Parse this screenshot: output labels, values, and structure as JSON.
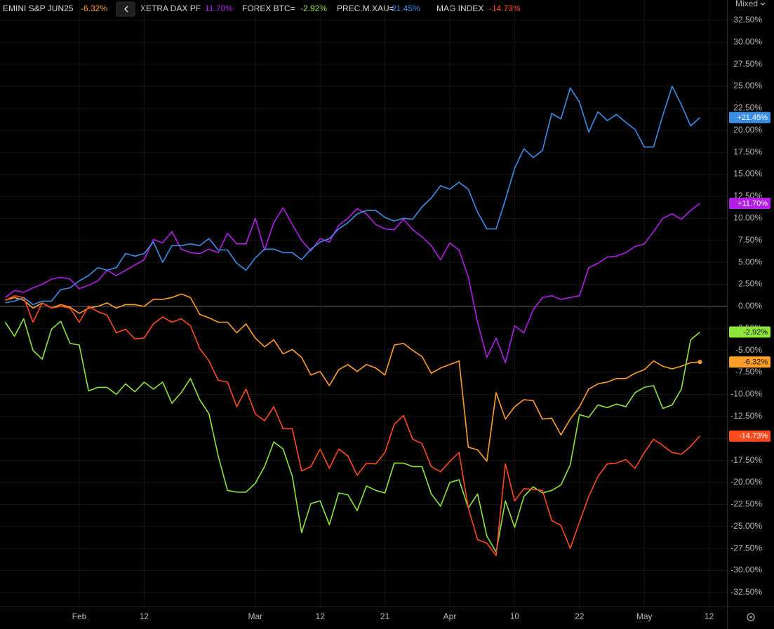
{
  "chart_data": {
    "type": "line",
    "scale_mode": "Mixed",
    "categories": [
      null,
      null,
      null,
      null,
      null,
      null,
      null,
      null,
      "Feb",
      null,
      null,
      null,
      null,
      null,
      null,
      "12",
      null,
      null,
      null,
      null,
      null,
      null,
      null,
      null,
      null,
      null,
      null,
      "Mar",
      null,
      null,
      null,
      null,
      null,
      null,
      "12",
      null,
      null,
      null,
      null,
      null,
      null,
      "21",
      null,
      null,
      null,
      null,
      null,
      null,
      "Apr",
      null,
      null,
      null,
      null,
      null,
      null,
      "10",
      null,
      null,
      null,
      null,
      null,
      null,
      "22",
      null,
      null,
      null,
      null,
      null,
      null,
      "May",
      null,
      null,
      null,
      null,
      null,
      null,
      "12"
    ],
    "ylim": [
      -34.1,
      34.8
    ],
    "yticks": [
      {
        "value": 32.5,
        "label": "32.50%"
      },
      {
        "value": 30,
        "label": "30.00%"
      },
      {
        "value": 27.5,
        "label": "27.50%"
      },
      {
        "value": 25,
        "label": "25.00%"
      },
      {
        "value": 22.5,
        "label": "22.50%"
      },
      {
        "value": 20,
        "label": "20.00%"
      },
      {
        "value": 17.5,
        "label": "17.50%"
      },
      {
        "value": 15,
        "label": "15.00%"
      },
      {
        "value": 12.5,
        "label": "12.50%"
      },
      {
        "value": 10,
        "label": "10.00%"
      },
      {
        "value": 7.5,
        "label": "7.50%"
      },
      {
        "value": 5,
        "label": "5.00%"
      },
      {
        "value": 2.5,
        "label": "2.50%"
      },
      {
        "value": 0,
        "label": "0.00%"
      },
      {
        "value": -2.5,
        "label": "-2.50%"
      },
      {
        "value": -5,
        "label": "-5.00%"
      },
      {
        "value": -7.5,
        "label": "-7.50%"
      },
      {
        "value": -10,
        "label": "-10.00%"
      },
      {
        "value": -12.5,
        "label": "-12.50%"
      },
      {
        "value": -15,
        "label": "-15.00%"
      },
      {
        "value": -17.5,
        "label": "-17.50%"
      },
      {
        "value": -20,
        "label": "-20.00%"
      },
      {
        "value": -22.5,
        "label": "-22.50%"
      },
      {
        "value": -25,
        "label": "-25.00%"
      },
      {
        "value": -27.5,
        "label": "-27.50%"
      },
      {
        "value": -30,
        "label": "-30.00%"
      },
      {
        "value": -32.5,
        "label": "-32.50%"
      }
    ],
    "grid": true,
    "series": [
      {
        "name": "EMINI S&P JUN25",
        "color": "#ff9f2a",
        "legend_label": "-6.32%",
        "last_label": "-6.32%",
        "end_marker": true,
        "values": [
          0.7,
          1.0,
          0.7,
          -0.2,
          0.4,
          -0.2,
          0.2,
          -0.1,
          -0.8,
          -0.2,
          0,
          0.4,
          -0.2,
          0.2,
          0.2,
          0,
          0.8,
          0.8,
          1.0,
          1.4,
          1.0,
          -0.9,
          -1.3,
          -1.8,
          -1.8,
          -3.0,
          -2.0,
          -3.6,
          -4.6,
          -3.8,
          -5.4,
          -4.9,
          -5.8,
          -7.8,
          -7.4,
          -9.0,
          -7.2,
          -6.6,
          -7.4,
          -6.6,
          -7.0,
          -7.8,
          -4.4,
          -4.2,
          -5.0,
          -5.7,
          -7.6,
          -7.0,
          -6.6,
          -6.2,
          -16.0,
          -16.3,
          -17.6,
          -9.8,
          -12.8,
          -11.4,
          -10.6,
          -10.7,
          -12.8,
          -12.7,
          -14.6,
          -12.8,
          -11.4,
          -9.4,
          -8.8,
          -8.6,
          -8.2,
          -8.2,
          -7.6,
          -7.2,
          -6.2,
          -6.8,
          -7.1,
          -6.8,
          -6.4,
          -6.32,
          null
        ]
      },
      {
        "name": "XETRA DAX PF",
        "color": "#b21ee6",
        "legend_label": "11.70%",
        "last_label": "+11.70%",
        "end_marker": false,
        "values": [
          1.0,
          1.8,
          1.6,
          2.1,
          2.5,
          3.1,
          3.3,
          3.1,
          2.0,
          2.4,
          2.9,
          4.1,
          3.5,
          4.1,
          4.7,
          5.3,
          7.6,
          7.2,
          8.5,
          6.5,
          6.1,
          6.0,
          6.5,
          6.1,
          8.3,
          7.1,
          7.1,
          10.0,
          6.4,
          9.5,
          11.2,
          9.3,
          7.5,
          6.3,
          7.7,
          7.3,
          9.2,
          10.0,
          11.1,
          10.5,
          9.3,
          8.8,
          8.7,
          9.9,
          8.7,
          7.9,
          6.9,
          5.3,
          7.2,
          6.4,
          3.3,
          -1.8,
          -5.8,
          -3.6,
          -6.4,
          -2.2,
          -3.0,
          -0.4,
          1.0,
          1.2,
          0.8,
          1.0,
          1.2,
          4.4,
          4.9,
          5.6,
          5.7,
          6.1,
          6.8,
          7.1,
          8.5,
          10.0,
          10.5,
          9.9,
          10.9,
          11.7,
          null
        ]
      },
      {
        "name": "FOREX BTC=",
        "color": "#8ee63c",
        "legend_label": "-2.92%",
        "last_label": "-2.92%",
        "end_marker": false,
        "values": [
          -1.8,
          -3.4,
          -1.4,
          -5.0,
          -6.0,
          -2.6,
          -1.7,
          -4.2,
          -4.4,
          -9.6,
          -9.2,
          -9.2,
          -10.0,
          -8.8,
          -9.7,
          -8.6,
          -9.4,
          -8.6,
          -11.0,
          -9.8,
          -8.2,
          -10.6,
          -12.2,
          -17.0,
          -20.9,
          -21.1,
          -21.1,
          -20.1,
          -18.2,
          -15.4,
          -16.2,
          -19.3,
          -25.7,
          -22.4,
          -22.1,
          -24.8,
          -21.2,
          -21.4,
          -23.2,
          -20.4,
          -20.9,
          -21.2,
          -17.8,
          -17.8,
          -18.2,
          -18.2,
          -21.3,
          -22.7,
          -20.0,
          -19.7,
          -22.9,
          -21.3,
          -26.1,
          -27.9,
          -22.1,
          -25.1,
          -21.6,
          -20.5,
          -21.2,
          -20.9,
          -20.3,
          -18.0,
          -12.3,
          -12.6,
          -11.2,
          -11.5,
          -11.1,
          -11.4,
          -9.8,
          -9.2,
          -9.0,
          -11.6,
          -11.2,
          -9.4,
          -3.8,
          -2.92,
          null
        ]
      },
      {
        "name": "PREC.M.XAU=",
        "color": "#3a8ee6",
        "legend_label": "21.45%",
        "last_label": "+21.45%",
        "end_marker": false,
        "values": [
          0.4,
          0.6,
          1.0,
          0.2,
          0.6,
          0.6,
          1.9,
          2.1,
          2.9,
          3.5,
          4.4,
          4.1,
          4.4,
          6.0,
          5.7,
          6.0,
          7.3,
          5.0,
          6.9,
          6.9,
          7.1,
          6.9,
          7.7,
          6.4,
          6.4,
          4.9,
          4.1,
          5.5,
          6.5,
          6.5,
          6.1,
          6.1,
          5.3,
          6.5,
          7.3,
          7.7,
          8.8,
          9.5,
          10.5,
          10.9,
          10.9,
          10.1,
          9.7,
          10.0,
          9.9,
          11.3,
          12.3,
          13.7,
          13.3,
          14.1,
          13.3,
          10.7,
          8.8,
          8.8,
          12.1,
          15.7,
          17.9,
          16.9,
          17.7,
          21.9,
          21.3,
          24.8,
          23.2,
          19.8,
          22.1,
          21.1,
          21.8,
          20.9,
          20.1,
          18.1,
          18.1,
          21.7,
          25.0,
          22.9,
          20.5,
          21.45,
          null
        ]
      },
      {
        "name": "MAG INDEX",
        "color": "#ff4a1c",
        "legend_label": "-14.73%",
        "last_label": "-14.73%",
        "end_marker": false,
        "values": [
          0.7,
          1.2,
          1.0,
          -1.8,
          0.4,
          -0.2,
          0,
          -0.2,
          -1.8,
          0,
          -0.6,
          -1.0,
          -3.0,
          -2.6,
          -3.7,
          -3.6,
          -2.0,
          -1.2,
          -1.8,
          -1.4,
          -2.2,
          -4.8,
          -6.2,
          -8.4,
          -8.6,
          -11.4,
          -9.4,
          -12.2,
          -13.0,
          -11.4,
          -13.9,
          -13.9,
          -18.7,
          -18.2,
          -16.2,
          -18.4,
          -16.2,
          -17.0,
          -19.2,
          -17.8,
          -17.9,
          -16.6,
          -13.4,
          -12.4,
          -15.1,
          -15.6,
          -18.2,
          -18.8,
          -17.6,
          -16.6,
          -22.9,
          -26.5,
          -26.9,
          -28.3,
          -17.9,
          -22.1,
          -20.7,
          -20.8,
          -20.9,
          -24.3,
          -24.9,
          -27.5,
          -24.5,
          -21.6,
          -19.3,
          -17.9,
          -17.8,
          -17.4,
          -18.4,
          -16.6,
          -15.1,
          -15.8,
          -16.6,
          -16.8,
          -15.9,
          -14.73,
          null
        ]
      }
    ]
  }
}
